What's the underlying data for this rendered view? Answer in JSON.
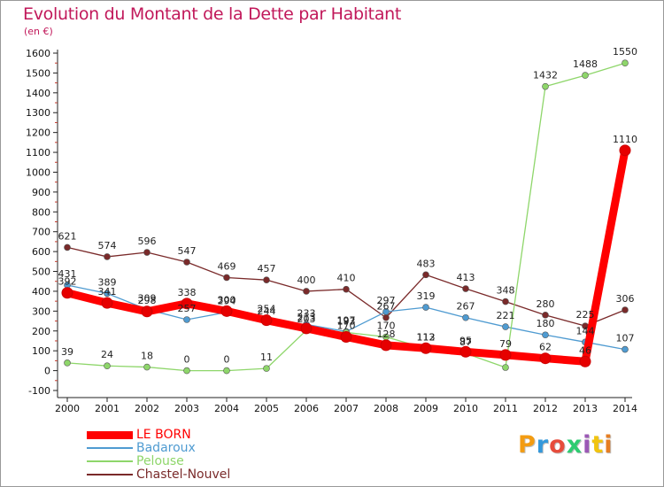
{
  "title": "Evolution du Montant de la Dette par Habitant",
  "unit_label": "(en €)",
  "logo": {
    "text": "Proxiti",
    "letters": [
      "P",
      "r",
      "o",
      "x",
      "i",
      "t",
      "i"
    ],
    "colors": [
      "#f39c12",
      "#3498db",
      "#e74c3c",
      "#2ecc71",
      "#9b59b6",
      "#f1c40f",
      "#e67e22"
    ]
  },
  "chart_data": {
    "type": "line",
    "x": [
      "2000",
      "2001",
      "2002",
      "2003",
      "2004",
      "2005",
      "2006",
      "2007",
      "2008",
      "2009",
      "2010",
      "2011",
      "2012",
      "2013",
      "2014"
    ],
    "ylim": [
      -100,
      1600
    ],
    "yticks": [
      "-100",
      "0",
      "100",
      "200",
      "300",
      "400",
      "500",
      "600",
      "700",
      "800",
      "900",
      "1000",
      "1100",
      "1200",
      "1300",
      "1400",
      "1500",
      "1600"
    ],
    "grid": false,
    "legend_position": "bottom-left",
    "series": [
      {
        "name": "LE BORN",
        "color": "#ff0000",
        "values": [
          392,
          341,
          298,
          338,
          300,
          254,
          213,
          170,
          128,
          113,
          95,
          79,
          62,
          46,
          1110
        ],
        "labels": [
          "392",
          "341",
          "298",
          "338",
          "300",
          "254",
          "213",
          "170",
          "128",
          "113",
          "95",
          "79",
          "62",
          "46",
          "1110"
        ]
      },
      {
        "name": "Badaroux",
        "color": "#4f9bd1",
        "values": [
          431,
          389,
          309,
          257,
          294,
          244,
          233,
          197,
          297,
          319,
          267,
          221,
          180,
          144,
          107
        ],
        "labels": [
          "431",
          "389",
          "309",
          "257",
          "294",
          "244",
          "233",
          "197",
          "297",
          "319",
          "267",
          "221",
          "180",
          "144",
          "107"
        ]
      },
      {
        "name": "Pelouse",
        "color": "#8ed66a",
        "values": [
          39,
          24,
          18,
          0,
          0,
          11,
          203,
          193,
          170,
          112,
          87,
          16,
          1432,
          1488,
          1550
        ],
        "labels": [
          "39",
          "24",
          "18",
          "0",
          "0",
          "11",
          "203",
          "193",
          "170",
          "112",
          "87",
          "",
          "1432",
          "1488",
          "1550"
        ]
      },
      {
        "name": "Chastel-Nouvel",
        "color": "#7a2a2a",
        "values": [
          621,
          574,
          596,
          547,
          469,
          457,
          400,
          410,
          267,
          483,
          413,
          348,
          280,
          225,
          306
        ],
        "labels": [
          "621",
          "574",
          "596",
          "547",
          "469",
          "457",
          "400",
          "410",
          "267",
          "483",
          "413",
          "348",
          "280",
          "225",
          "306"
        ]
      }
    ]
  }
}
